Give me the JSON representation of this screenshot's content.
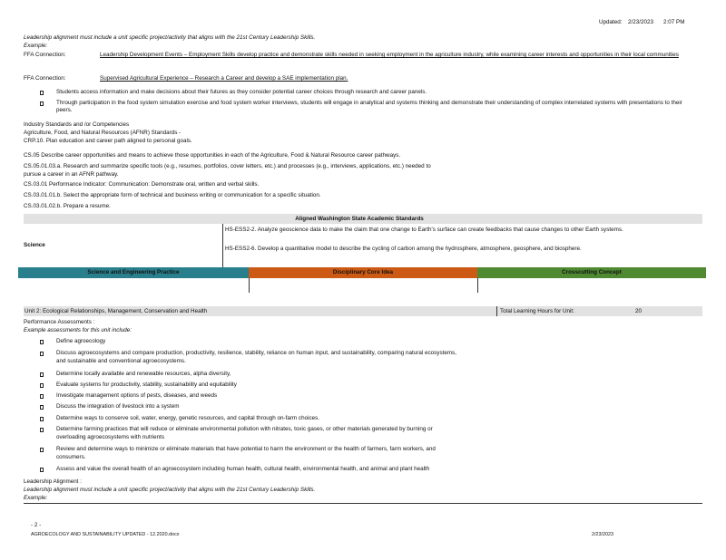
{
  "header": {
    "updated_label": "Updated:",
    "date": "2/23/2023",
    "time": "2:07 PM"
  },
  "top_section": {
    "leadership_line": "Leadership alignment must include a unit specific project/activity that aligns with the 21st Century Leadership Skills.",
    "example": "Example:",
    "ffa1_label": "FFA Connection:",
    "ffa1_text": "Leadership Development Events – Employment Skills develop practice and demonstrate skills needed in seeking employment in the agriculture industry, while examining career interests and opportunities in their local communities",
    "ffa2_label": "FFA Connection:",
    "ffa2_text": "Supervised Agricultural Experience – Research a Career and develop a SAE implementation plan.",
    "bullets": [
      "Students access information and make decisions about their futures as they consider potential career choices through research and career panels.",
      "Through participation in the food system simulation exercise and food system worker interviews, students will engage in analytical and systems thinking and demonstrate their understanding of complex interrelated systems with presentations to their peers."
    ]
  },
  "industry": {
    "line1": "Industry Standards and /or Competencies",
    "line2": "Agriculture, Food, and Natural Resources (AFNR) Standards -",
    "lines": [
      "CRP.10. Plan education and career path aligned to personal goals.",
      "CS.05 Describe career opportunities and means to achieve those opportunities in each of the Agriculture, Food & Natural Resource career pathways.",
      "CS.05.01.03.a. Research and summarize specific tools (e.g., resumes, portfolios, cover letters, etc.) and processes (e.g., interviews, applications, etc.) needed to",
      "pursue a career in an AFNR pathway.",
      "CS.03.01 Performance Indicator: Communication: Demonstrate oral, written and verbal skills.",
      "CS.03.01.01.b. Select the appropriate form of technical and business writing or communication for a specific situation.",
      "CS.03.01.02.b. Prepare a resume."
    ]
  },
  "standards_table": {
    "heading": "Aligned Washington State Academic Standards",
    "subject": "Science",
    "hs1": "HS-ESS2-2. Analyze geoscience data to make the claim that one change to Earth's surface can create feedbacks that cause changes to other Earth systems.",
    "hs2": "HS-ESS2-6. Develop a quantitative model to describe the cycling of carbon among the hydrosphere, atmosphere, geosphere, and biosphere.",
    "col1": "Science and Engineering Practice",
    "col2": "Disciplinary Core Idea",
    "col3": "Crosscutting Concept",
    "col1_color": "#2a7f8c",
    "col2_color": "#cc5a14",
    "col3_color": "#4f8a32"
  },
  "unit2": {
    "title": "Unit 2: Ecological Relationships, Management, Conservation and Health",
    "hours_label": "Total Learning Hours for Unit:",
    "hours": "20",
    "perf_label": "Performance Assessments :",
    "example_line": "Example assessments for this unit include:",
    "bullets": [
      "Define agroecology",
      "Discuss agroecosystems and compare production, productivity, resilience, stability, reliance on human input, and sustainability, comparing natural ecosystems,",
      "and sustainable and conventional agroecosystems.",
      "Determine locally available and renewable resources, alpha diversity,",
      "Evaluate systems for productivity, stability, sustainability and equitability",
      "Investigate management options of pests, diseases, and weeds",
      "Discuss the integration of livestock into a system",
      "Determine ways to conserve soil, water, energy, genetic resources, and capital through on-farm choices.",
      "Determine farming practices that will reduce or eliminate environmental pollution with nitrates, toxic gases, or other materials generated by burning or",
      "overloading agroecosystems with nutrients",
      "Review and determine ways to minimize or eliminate materials that have potential to harm the environment or the health of farmers, farm workers, and",
      "consumers.",
      "Assess and value the overall health of an agroecosystem including human health, cultural health, environmental health, and animal and plant health"
    ],
    "leadership_label": "Leadership Alignment :",
    "leadership_line": "Leadership alignment must include a unit specific project/activity that aligns with the 21st Century Leadership Skills.",
    "example": "Example:"
  },
  "footer": {
    "page": "- 2 -",
    "doc": "AGROECOLOGY AND SUSTAINABILITY UPDATED - 12.2020.docx",
    "date": "2/23/2023"
  }
}
